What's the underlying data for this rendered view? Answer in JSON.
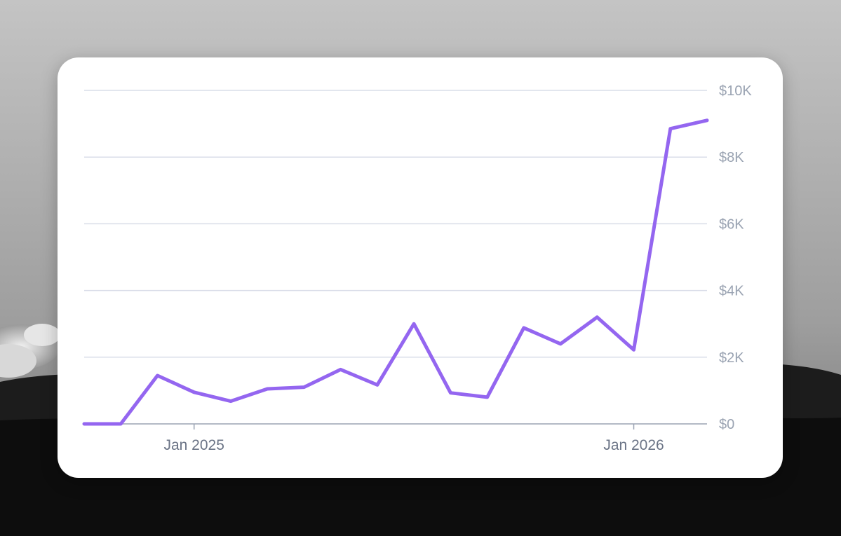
{
  "colors": {
    "line": "#9466f0",
    "grid": "#d9dde8",
    "card_background": "#ffffff"
  },
  "chart_data": {
    "type": "line",
    "title": "",
    "xlabel": "",
    "ylabel": "",
    "x_tick_labels": [
      "Jan 2025",
      "Jan 2026"
    ],
    "y_tick_labels": [
      "$0",
      "$2K",
      "$4K",
      "$6K",
      "$8K",
      "$10K"
    ],
    "ylim": [
      0,
      10000
    ],
    "grid": true,
    "legend": "none",
    "series": [
      {
        "x": [
          "2024-10",
          "2024-11",
          "2024-12",
          "2025-01",
          "2025-02",
          "2025-03",
          "2025-04",
          "2025-05",
          "2025-06",
          "2025-07",
          "2025-08",
          "2025-09",
          "2025-10",
          "2025-11",
          "2025-12",
          "2026-01",
          "2026-02",
          "2026-03"
        ],
        "values": [
          0,
          0,
          1450,
          950,
          680,
          1050,
          1100,
          1630,
          1170,
          3000,
          930,
          800,
          2880,
          2400,
          3200,
          2220,
          8850,
          9100
        ]
      }
    ]
  }
}
